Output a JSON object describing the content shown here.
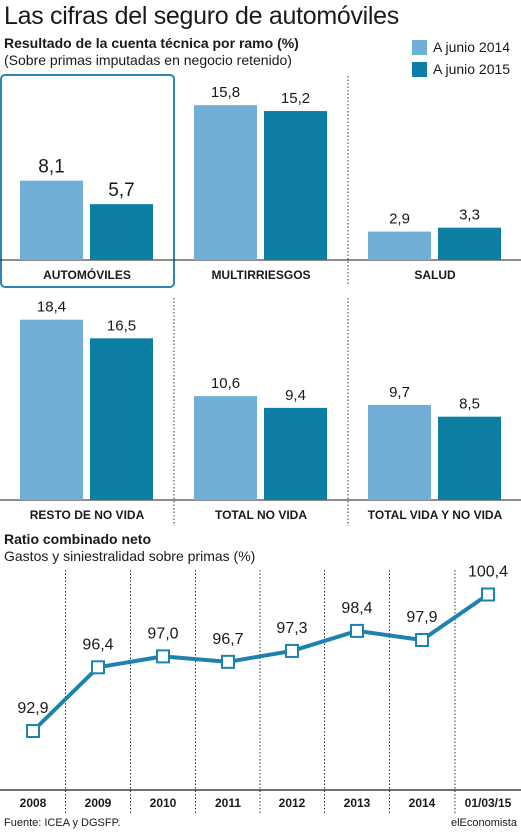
{
  "header": {
    "title": "Las cifras del seguro de automóviles",
    "subtitle": "Resultado de la cuenta técnica por ramo (%)",
    "subtitle2": "(Sobre primas imputadas en negocio retenido)"
  },
  "colors": {
    "series_2014": "#71aed6",
    "series_2015": "#0d7fa5",
    "line": "#1d82ad",
    "highlight": "#2c85b5"
  },
  "chart_data": [
    {
      "type": "bar",
      "series": [
        {
          "name": "A junio 2014",
          "values": [
            8.1,
            15.8,
            2.9,
            18.4,
            10.6,
            9.7
          ]
        },
        {
          "name": "A junio 2015",
          "values": [
            5.7,
            15.2,
            3.3,
            16.5,
            9.4,
            8.5
          ]
        }
      ],
      "categories": [
        "AUTOMÓVILES",
        "MULTIRRIESGOS",
        "SALUD",
        "RESTO DE NO VIDA",
        "TOTAL NO VIDA",
        "TOTAL VIDA Y NO VIDA"
      ],
      "value_labels": [
        [
          "8,1",
          "5,7"
        ],
        [
          "15,8",
          "15,2"
        ],
        [
          "2,9",
          "3,3"
        ],
        [
          "18,4",
          "16,5"
        ],
        [
          "10,6",
          "9,4"
        ],
        [
          "9,7",
          "8,5"
        ]
      ],
      "highlighted": "AUTOMÓVILES",
      "legend": "top-right"
    },
    {
      "type": "line",
      "title": "Ratio combinado neto",
      "subtitle": "Gastos y siniestralidad sobre primas (%)",
      "categories": [
        "2008",
        "2009",
        "2010",
        "2011",
        "2012",
        "2013",
        "2014",
        "01/03/15"
      ],
      "values": [
        92.9,
        96.4,
        97.0,
        96.7,
        97.3,
        98.4,
        97.9,
        100.4
      ],
      "value_labels": [
        "92,9",
        "96,4",
        "97,0",
        "96,7",
        "97,3",
        "98,4",
        "97,9",
        "100,4"
      ]
    }
  ],
  "footer": {
    "source": "Fuente: ICEA y DGSFP.",
    "brand": "elEconomista"
  }
}
